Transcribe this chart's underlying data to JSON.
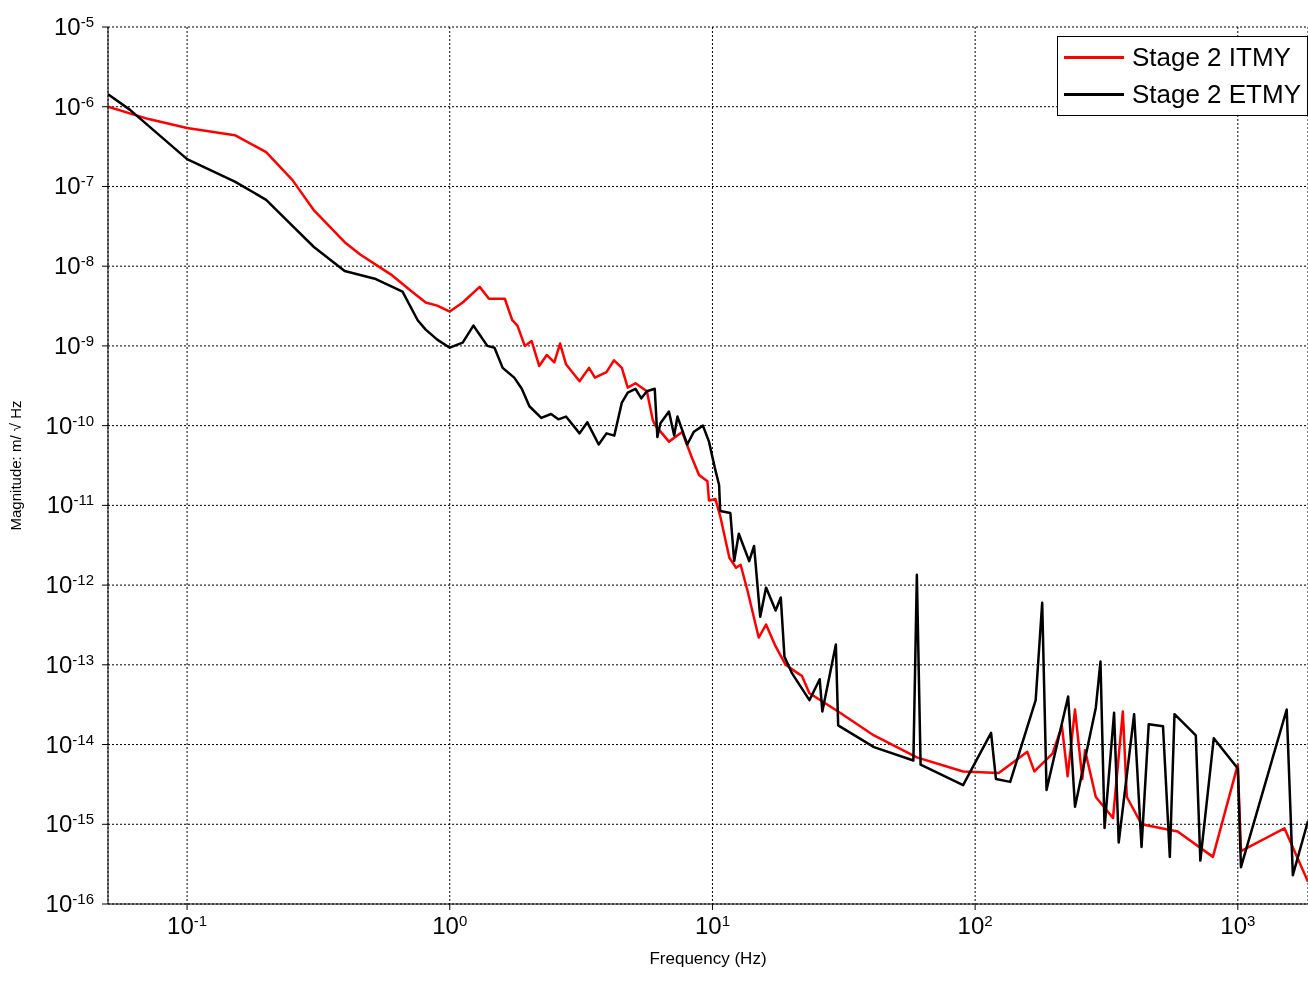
{
  "chart_data": {
    "type": "line",
    "xlabel": "Frequency (Hz)",
    "ylabel": "Magnitude: m/ √ Hz",
    "log": "xy",
    "grid": true,
    "legend": "top right",
    "xlim": [
      0.05,
      1850
    ],
    "ylim": [
      1e-16,
      1e-05
    ],
    "xticks": [
      {
        "value": 0.1,
        "label": "10$^{-1}$"
      },
      {
        "value": 1,
        "label": "10$^{0}$"
      },
      {
        "value": 10,
        "label": "10$^{1}$"
      },
      {
        "value": 100,
        "label": "10$^{2}$"
      },
      {
        "value": 1000,
        "label": "10$^{3}$"
      }
    ],
    "yticks": [
      {
        "value": 1e-16,
        "label": "10$^{-16}$"
      },
      {
        "value": 1e-15,
        "label": "10$^{-15}$"
      },
      {
        "value": 1e-14,
        "label": "10$^{-14}$"
      },
      {
        "value": 1e-13,
        "label": "10$^{-13}$"
      },
      {
        "value": 1e-12,
        "label": "10$^{-12}$"
      },
      {
        "value": 1e-11,
        "label": "10$^{-11}$"
      },
      {
        "value": 1e-10,
        "label": "10$^{-10}$"
      },
      {
        "value": 1e-09,
        "label": "10$^{-9}$"
      },
      {
        "value": 1e-08,
        "label": "10$^{-8}$"
      },
      {
        "value": 1e-07,
        "label": "10$^{-7}$"
      },
      {
        "value": 1e-06,
        "label": "10$^{-6}$"
      },
      {
        "value": 1e-05,
        "label": "10$^{-5}$"
      }
    ],
    "series": [
      {
        "name": "Stage 2 ITMY",
        "color": "#ff0000",
        "x": [
          0.05,
          0.0714,
          0.1,
          0.152,
          0.2,
          0.252,
          0.303,
          0.398,
          0.456,
          0.596,
          0.707,
          0.81,
          0.896,
          1.0,
          1.12,
          1.3,
          1.41,
          1.62,
          1.73,
          1.81,
          1.93,
          2.05,
          2.19,
          2.34,
          2.5,
          2.63,
          2.77,
          3.12,
          3.39,
          3.57,
          3.95,
          4.22,
          4.52,
          4.76,
          5.09,
          5.63,
          5.93,
          6.07,
          6.83,
          7.67,
          8.37,
          8.89,
          9.57,
          9.7,
          10.27,
          10.75,
          11.6,
          12.3,
          12.8,
          13.6,
          15.0,
          16.0,
          17.4,
          19.0,
          21.3,
          21.9,
          23.4,
          30.1,
          41.2,
          60,
          90,
          123,
          158,
          168,
          197,
          214,
          225,
          240,
          256,
          262,
          288,
          335,
          365,
          378,
          430,
          590,
          804,
          1000,
          1028,
          1505,
          1850
        ],
        "values": [
          1e-06,
          7e-07,
          5.4e-07,
          4.4e-07,
          2.7e-07,
          1.2e-07,
          5.1e-08,
          2e-08,
          1.4e-08,
          7.9e-09,
          5e-09,
          3.5e-09,
          3.2e-09,
          2.7e-09,
          3.5e-09,
          5.5e-09,
          3.9e-09,
          3.9e-09,
          2.1e-09,
          1.8e-09,
          1e-09,
          1.15e-09,
          5.6e-10,
          7.7e-10,
          6.2e-10,
          1.07e-09,
          5.9e-10,
          3.6e-10,
          5.3e-10,
          4e-10,
          4.7e-10,
          6.6e-10,
          5.3e-10,
          3e-10,
          3.4e-10,
          2.7e-10,
          1.17e-10,
          1e-10,
          6.3e-11,
          8.3e-11,
          3.9e-11,
          2.4e-11,
          2e-11,
          1.15e-11,
          1.2e-11,
          6.9e-12,
          2.2e-12,
          1.65e-12,
          1.8e-12,
          8.5e-13,
          2.2e-13,
          3.2e-13,
          1.7e-13,
          1e-13,
          7.7e-14,
          7.3e-14,
          4.4e-14,
          2.6e-14,
          1.3e-14,
          6.9e-15,
          4.6e-15,
          4.4e-15,
          8.1e-15,
          4.6e-15,
          7.7e-15,
          1.7e-14,
          4e-15,
          2.75e-14,
          3.7e-15,
          8.5e-15,
          2.2e-15,
          1.2e-15,
          2.6e-14,
          2.2e-15,
          1e-15,
          8.1e-16,
          3.9e-16,
          5.6e-15,
          4.6e-16,
          8.9e-16,
          1.9e-16
        ]
      },
      {
        "name": "Stage 2 ETMY",
        "color": "#000000",
        "x": [
          0.05,
          0.0605,
          0.1,
          0.152,
          0.2,
          0.257,
          0.304,
          0.398,
          0.523,
          0.661,
          0.755,
          0.81,
          0.896,
          1.0,
          1.12,
          1.23,
          1.39,
          1.48,
          1.59,
          1.76,
          1.88,
          2.01,
          2.23,
          2.43,
          2.59,
          2.77,
          3.12,
          3.34,
          3.69,
          3.95,
          4.23,
          4.52,
          4.76,
          5.09,
          5.36,
          5.63,
          6.03,
          6.17,
          6.34,
          6.83,
          7.15,
          7.36,
          8.02,
          8.5,
          9.2,
          9.7,
          10.2,
          10.6,
          10.7,
          11.7,
          12.1,
          12.6,
          13.8,
          14.4,
          15.2,
          16.0,
          17.4,
          18.2,
          18.8,
          20.1,
          23.4,
          25.6,
          26.2,
          29.5,
          30.1,
          41.2,
          58.2,
          60,
          62,
          90,
          115,
          120,
          136,
          170,
          180,
          187,
          226,
          240,
          288,
          300,
          311,
          338,
          352,
          403,
          430,
          458,
          519,
          551,
          574,
          692,
          720,
          810,
          1000,
          1028,
          1535,
          1620,
          1850
        ],
        "values": [
          1.43e-06,
          9.2e-07,
          2.2e-07,
          1.15e-07,
          6.8e-08,
          3e-08,
          1.74e-08,
          8.7e-09,
          6.9e-09,
          4.8e-09,
          2.1e-09,
          1.6e-09,
          1.2e-09,
          9.5e-10,
          1.1e-09,
          1.8e-09,
          1e-09,
          9.5e-10,
          5.3e-10,
          4e-10,
          2.9e-10,
          1.75e-10,
          1.25e-10,
          1.4e-10,
          1.2e-10,
          1.3e-10,
          8e-11,
          1.1e-10,
          5.8e-11,
          8e-11,
          7.5e-11,
          1.95e-10,
          2.6e-10,
          2.9e-10,
          2.2e-10,
          2.7e-10,
          2.9e-10,
          7.2e-11,
          1.07e-10,
          1.5e-10,
          7.5e-11,
          1.3e-10,
          5.8e-11,
          8.4e-11,
          1e-10,
          6.3e-11,
          3e-11,
          1.8e-11,
          8.5e-12,
          8e-12,
          2e-12,
          4.4e-12,
          2e-12,
          3.1e-12,
          4e-13,
          9.3e-13,
          4.8e-13,
          7e-13,
          1.26e-13,
          7.8e-14,
          3.6e-14,
          6.6e-14,
          2.6e-14,
          1.8e-13,
          1.74e-14,
          9.3e-15,
          6.3e-15,
          1.35e-12,
          5.6e-15,
          3.1e-15,
          1.4e-14,
          3.7e-15,
          3.4e-15,
          3.6e-14,
          6e-13,
          2.7e-15,
          4e-14,
          1.66e-15,
          2.9e-14,
          1.1e-13,
          9e-16,
          2.5e-14,
          5.9e-16,
          2.4e-14,
          5.2e-16,
          1.8e-14,
          1.7e-14,
          3.9e-16,
          2.4e-14,
          1.3e-14,
          3.5e-16,
          1.2e-14,
          5e-15,
          2.9e-16,
          2.75e-14,
          2.3e-16,
          1.1e-15
        ]
      }
    ]
  }
}
